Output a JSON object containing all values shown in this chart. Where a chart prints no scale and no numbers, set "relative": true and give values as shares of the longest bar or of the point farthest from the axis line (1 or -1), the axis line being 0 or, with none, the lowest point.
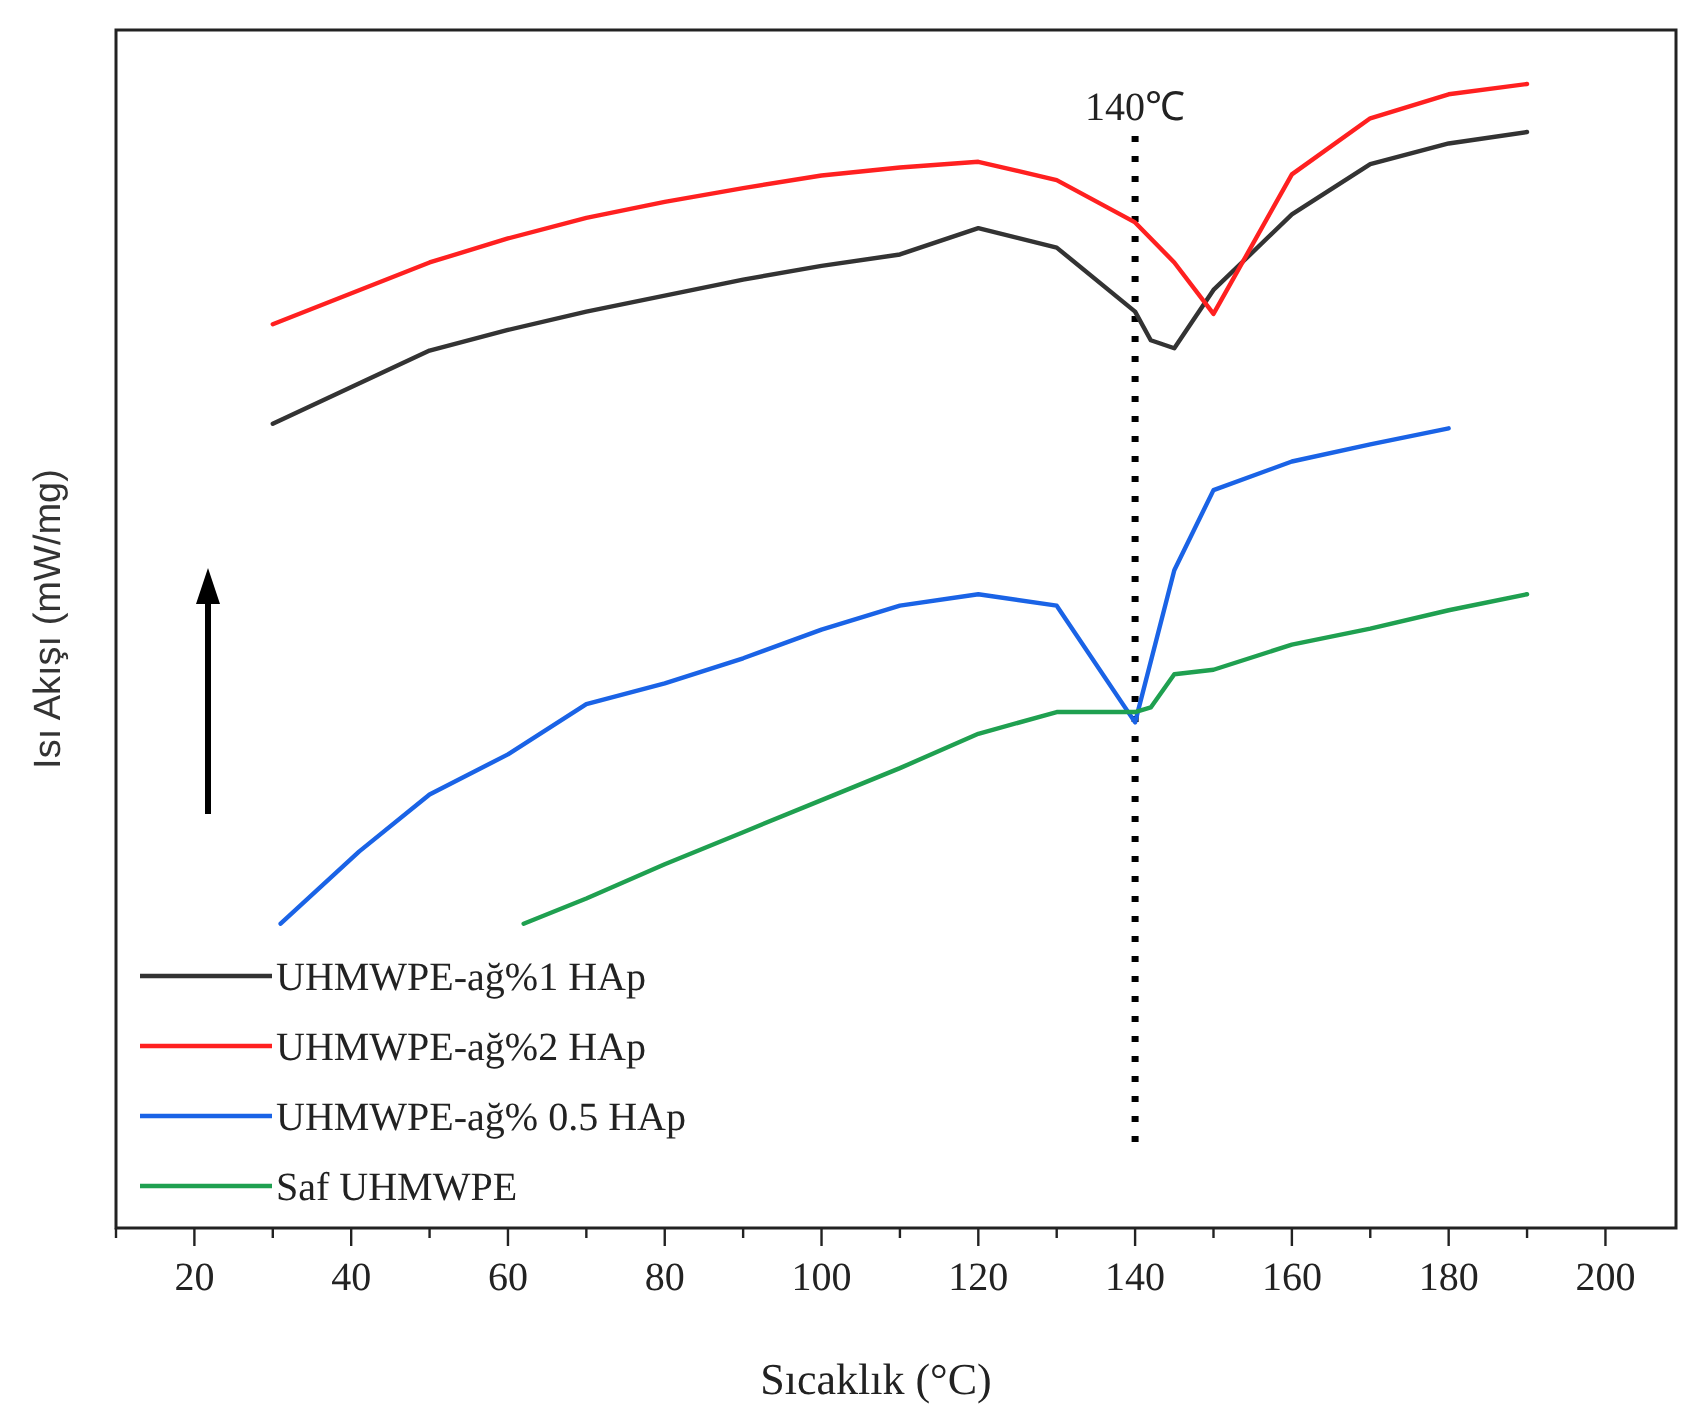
{
  "chart_data": {
    "type": "line",
    "relative": true,
    "xlabel": "Sıcaklık (°C)",
    "ylabel": "Isı Akışı (mW/mg)",
    "xlim": [
      10,
      209
    ],
    "xticks": [
      {
        "value": 10,
        "label": null
      },
      20,
      {
        "value": 30,
        "label": null
      },
      40,
      {
        "value": 50,
        "label": null
      },
      60,
      {
        "value": 70,
        "label": null
      },
      80,
      {
        "value": 90,
        "label": null
      },
      100,
      {
        "value": 110,
        "label": null
      },
      120,
      {
        "value": 130,
        "label": null
      },
      140,
      {
        "value": 150,
        "label": null
      },
      160,
      {
        "value": 170,
        "label": null
      },
      180,
      {
        "value": 190,
        "label": null
      },
      200
    ],
    "grid": false,
    "legend": "bottom left",
    "line_style": "solid",
    "marker": "none",
    "ref_lines": [
      {
        "axis": "x",
        "value": 140,
        "label": "140℃",
        "color": "#000000",
        "line_style": "dotted"
      }
    ],
    "series": [
      {
        "name": "UHMWPE-ağ%1 HAp",
        "color": "#333333",
        "x": [
          30,
          50,
          60,
          70,
          80,
          90,
          100,
          110,
          120,
          130,
          140,
          142,
          145,
          150,
          160,
          170,
          180,
          190
        ],
        "values": [
          0.703,
          0.767,
          0.785,
          0.801,
          0.815,
          0.829,
          0.841,
          0.851,
          0.874,
          0.857,
          0.801,
          0.776,
          0.769,
          0.82,
          0.886,
          0.93,
          0.948,
          0.958
        ]
      },
      {
        "name": "UHMWPE-ağ%2 HAp",
        "color": "#ff2020",
        "x": [
          30,
          50,
          60,
          70,
          80,
          90,
          100,
          110,
          120,
          130,
          140,
          145,
          150,
          160,
          170,
          180,
          190
        ],
        "values": [
          0.79,
          0.844,
          0.865,
          0.883,
          0.897,
          0.909,
          0.92,
          0.927,
          0.932,
          0.916,
          0.879,
          0.844,
          0.799,
          0.921,
          0.97,
          0.991,
          1
        ]
      },
      {
        "name": "UHMWPE-ağ% 0.5 HAp",
        "color": "#1a63e6",
        "x": [
          31,
          41,
          50,
          60,
          70,
          80,
          90,
          100,
          110,
          120,
          130,
          140,
          145,
          150,
          160,
          170,
          180
        ],
        "values": [
          0.266,
          0.329,
          0.379,
          0.414,
          0.458,
          0.476,
          0.498,
          0.523,
          0.544,
          0.554,
          0.544,
          0.442,
          0.575,
          0.645,
          0.67,
          0.685,
          0.699
        ]
      },
      {
        "name": "Saf UHMWPE",
        "color": "#1fa050",
        "x": [
          62,
          70,
          80,
          90,
          100,
          110,
          120,
          130,
          140,
          142,
          145,
          150,
          160,
          170,
          180,
          190
        ],
        "values": [
          0.266,
          0.288,
          0.318,
          0.346,
          0.374,
          0.402,
          0.432,
          0.451,
          0.451,
          0.455,
          0.484,
          0.488,
          0.51,
          0.524,
          0.54,
          0.554
        ]
      }
    ]
  }
}
